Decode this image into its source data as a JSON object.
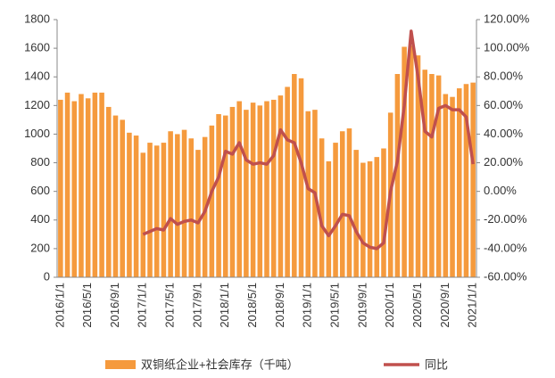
{
  "chart_data": {
    "type": "bar_line",
    "categories": [
      "2016/1/1",
      null,
      null,
      null,
      "2016/5/1",
      null,
      null,
      null,
      "2016/9/1",
      null,
      null,
      null,
      "2017/1/1",
      null,
      null,
      null,
      "2017/5/1",
      null,
      null,
      null,
      "2017/9/1",
      null,
      null,
      null,
      "2018/1/1",
      null,
      null,
      null,
      "2018/5/1",
      null,
      null,
      null,
      "2018/9/1",
      null,
      null,
      null,
      "2019/1/1",
      null,
      null,
      null,
      "2019/5/1",
      null,
      null,
      null,
      "2019/9/1",
      null,
      null,
      null,
      "2020/1/1",
      null,
      null,
      null,
      "2020/5/1",
      null,
      null,
      null,
      "2020/9/1",
      null,
      null,
      null,
      "2021/1/1"
    ],
    "series": [
      {
        "name": "双铜纸企业+社会库存（千吨）",
        "color": "#f59a3d",
        "values": [
          1240,
          1290,
          1230,
          1280,
          1250,
          1290,
          1290,
          1190,
          1130,
          1100,
          1010,
          990,
          870,
          940,
          920,
          940,
          1020,
          1000,
          1030,
          970,
          890,
          980,
          1060,
          1140,
          1130,
          1190,
          1230,
          1170,
          1220,
          1200,
          1230,
          1240,
          1270,
          1330,
          1420,
          1390,
          1160,
          1170,
          970,
          810,
          940,
          1020,
          1040,
          890,
          800,
          810,
          840,
          900,
          1150,
          1420,
          1610,
          1620,
          1550,
          1450,
          1420,
          1410,
          1280,
          1260,
          1320,
          1350,
          1360
        ]
      },
      {
        "name": "同比",
        "color": "#c0504d",
        "axis": "y2",
        "values": [
          null,
          null,
          null,
          null,
          null,
          null,
          null,
          null,
          null,
          null,
          null,
          null,
          -30,
          -28,
          -26,
          -27,
          -19,
          -23,
          -21,
          -20,
          -22,
          -14,
          0,
          10,
          28,
          26,
          34,
          22,
          19,
          20,
          19,
          25,
          43,
          36,
          34,
          20,
          2,
          -1,
          -24,
          -31,
          -24,
          -16,
          -17,
          -28,
          -36,
          -39,
          -40,
          -36,
          0,
          21,
          60,
          112,
          80,
          42,
          38,
          58,
          60,
          57,
          57,
          52,
          19
        ]
      }
    ],
    "ylim": [
      0,
      1800
    ],
    "yticks": [
      0,
      200,
      400,
      600,
      800,
      1000,
      1200,
      1400,
      1600,
      1800
    ],
    "y2lim": [
      -60,
      120
    ],
    "y2ticks": [
      {
        "value": -60,
        "label": "-60.00%"
      },
      {
        "value": -40,
        "label": "-40.00%"
      },
      {
        "value": -20,
        "label": "-20.00%"
      },
      {
        "value": 0,
        "label": "0.00%"
      },
      {
        "value": 20,
        "label": "20.00%"
      },
      {
        "value": 40,
        "label": "40.00%"
      },
      {
        "value": 60,
        "label": "60.00%"
      },
      {
        "value": 80,
        "label": "80.00%"
      },
      {
        "value": 100,
        "label": "100.00%"
      },
      {
        "value": 120,
        "label": "120.00%"
      }
    ]
  }
}
